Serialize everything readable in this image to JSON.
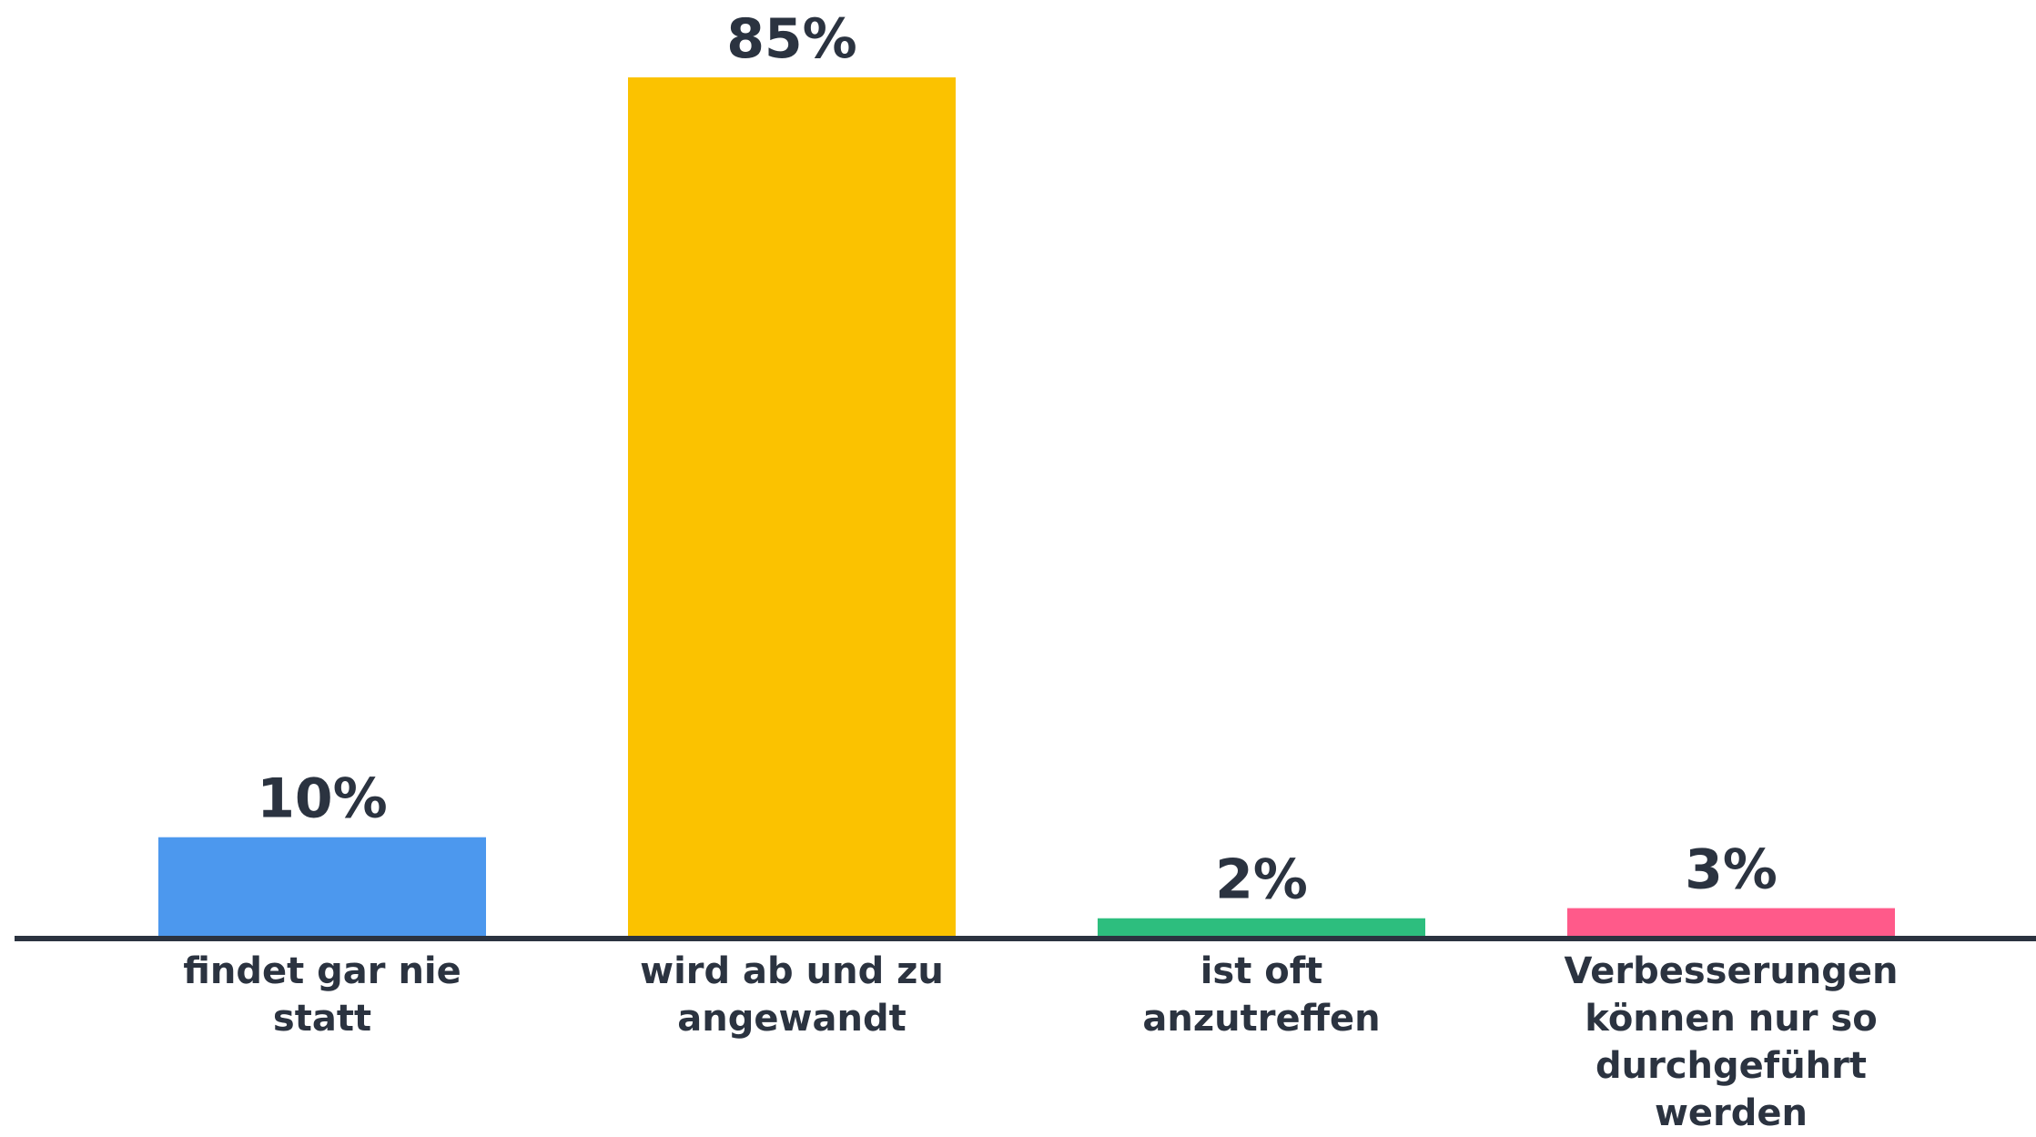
{
  "chart_data": {
    "type": "bar",
    "categories": [
      [
        "findet gar nie",
        "statt"
      ],
      [
        "wird ab und zu",
        "angewandt"
      ],
      [
        "ist oft",
        "anzutreffen"
      ],
      [
        "Verbesserungen",
        "können nur so",
        "durchgeführt",
        "werden"
      ]
    ],
    "values": [
      10,
      85,
      2,
      3
    ],
    "value_labels": [
      "10%",
      "85%",
      "2%",
      "3%"
    ],
    "colors": [
      "#4C98EE",
      "#FBC200",
      "#2DBE7E",
      "#FF5A8A"
    ],
    "axis_color": "#2b3340",
    "ylim": [
      0,
      85
    ],
    "grid": false,
    "legend": "none"
  }
}
